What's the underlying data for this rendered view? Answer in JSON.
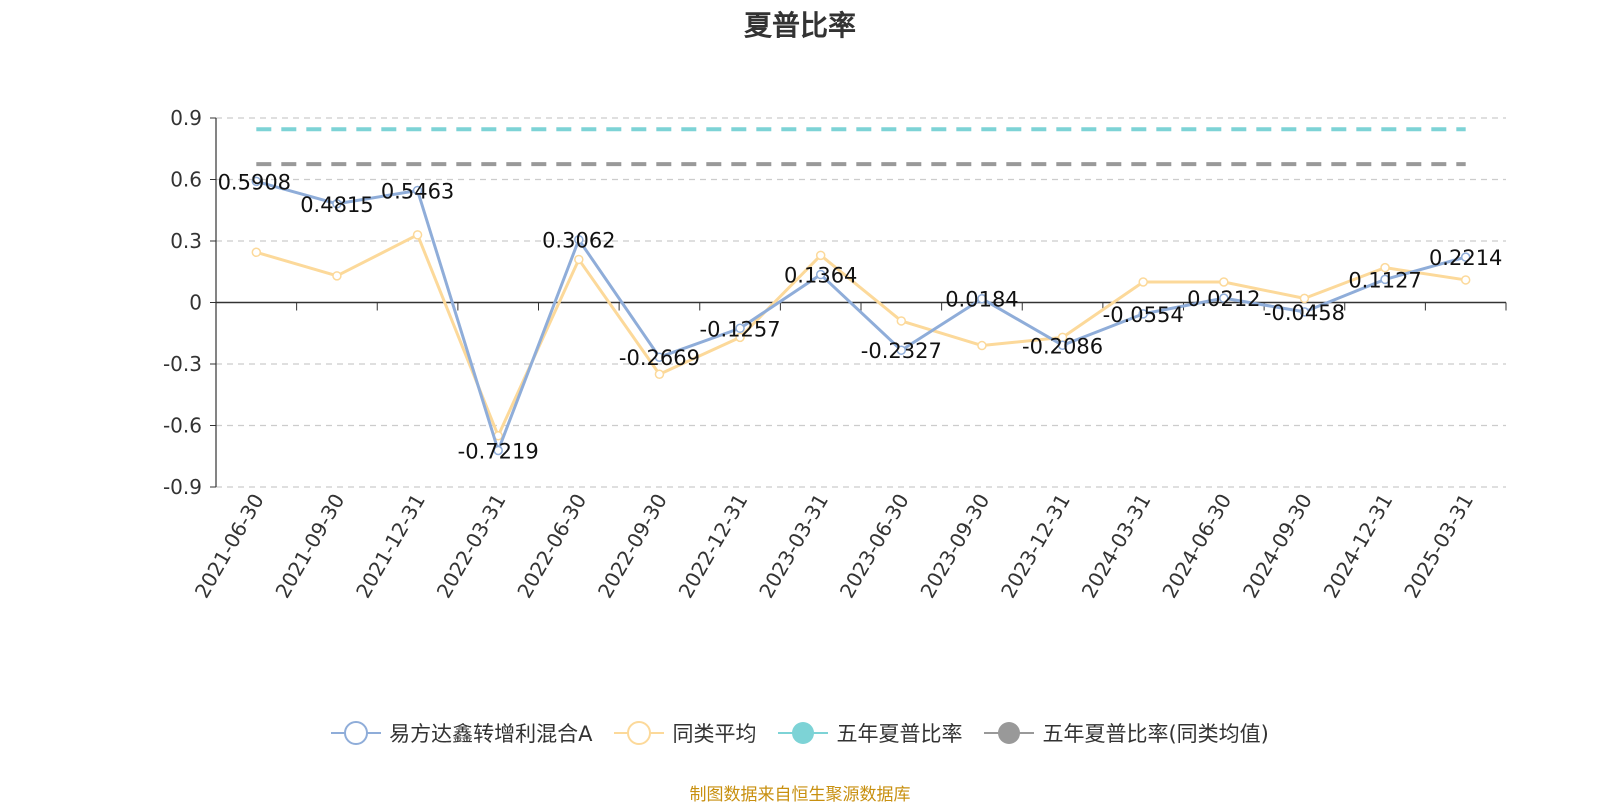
{
  "chart_data": {
    "type": "line",
    "title": "夏普比率",
    "x": [
      "2021-06-30",
      "2021-09-30",
      "2021-12-31",
      "2022-03-31",
      "2022-06-30",
      "2022-09-30",
      "2022-12-31",
      "2023-03-31",
      "2023-06-30",
      "2023-09-30",
      "2023-12-31",
      "2024-03-31",
      "2024-06-30",
      "2024-09-30",
      "2024-12-31",
      "2025-03-31"
    ],
    "ylim": [
      -0.9,
      0.9
    ],
    "yticks": [
      "0.9",
      "0.6",
      "0.3",
      "0",
      "-0.3",
      "-0.6",
      "-0.9"
    ],
    "grid": true,
    "legend_position": "bottom",
    "series": [
      {
        "name": "易方达鑫转增利混合A",
        "color": "#8fadd9",
        "values": [
          0.5908,
          0.4815,
          0.5463,
          -0.7219,
          0.3062,
          -0.2669,
          -0.1257,
          0.1364,
          -0.2327,
          0.0184,
          -0.2086,
          -0.0554,
          0.0212,
          -0.0458,
          0.1127,
          0.2214
        ],
        "labels": [
          "0.5908",
          "0.4815",
          "0.5463",
          "-0.7219",
          "0.3062",
          "-0.2669",
          "-0.1257",
          "0.1364",
          "-0.2327",
          "0.0184",
          "-0.2086",
          "-0.0554",
          "0.0212",
          "-0.0458",
          "0.1127",
          "0.2214"
        ]
      },
      {
        "name": "同类平均",
        "color": "#fcd99a",
        "values": [
          0.245,
          0.13,
          0.33,
          -0.65,
          0.21,
          -0.35,
          -0.17,
          0.23,
          -0.09,
          -0.21,
          -0.17,
          0.1,
          0.1,
          0.02,
          0.17,
          0.11
        ]
      },
      {
        "name": "五年夏普比率",
        "color": "#7dd3d6",
        "value": 0.845
      },
      {
        "name": "五年夏普比率(同类均值)",
        "color": "#999999",
        "value": 0.675
      }
    ]
  },
  "source_note": "制图数据来自恒生聚源数据库"
}
